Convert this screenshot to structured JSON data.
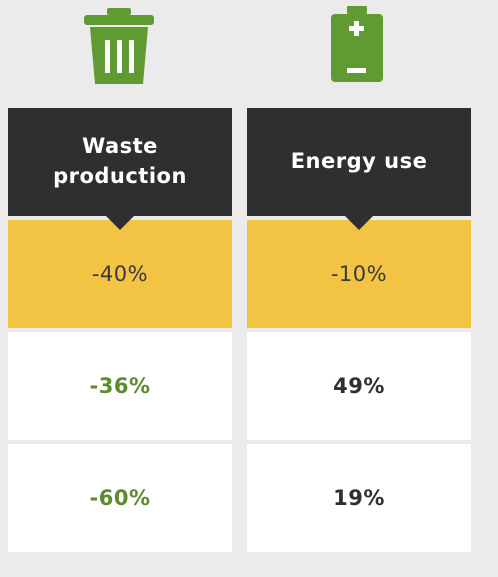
{
  "icons": {
    "left": "trash-can-icon",
    "right": "battery-icon",
    "color": "#5f9a32"
  },
  "columns": [
    {
      "header": "Waste production",
      "target": "-40%",
      "values": [
        "-36%",
        "-60%"
      ]
    },
    {
      "header": "Energy use",
      "target": "-10%",
      "values": [
        "49%",
        "19%"
      ]
    }
  ],
  "colors": {
    "header_bg": "#2f2f2f",
    "target_bg": "#f3c443",
    "positive_text": "#5b8b2e",
    "neutral_text": "#2f2f2f",
    "page_bg": "#ebebeb"
  }
}
